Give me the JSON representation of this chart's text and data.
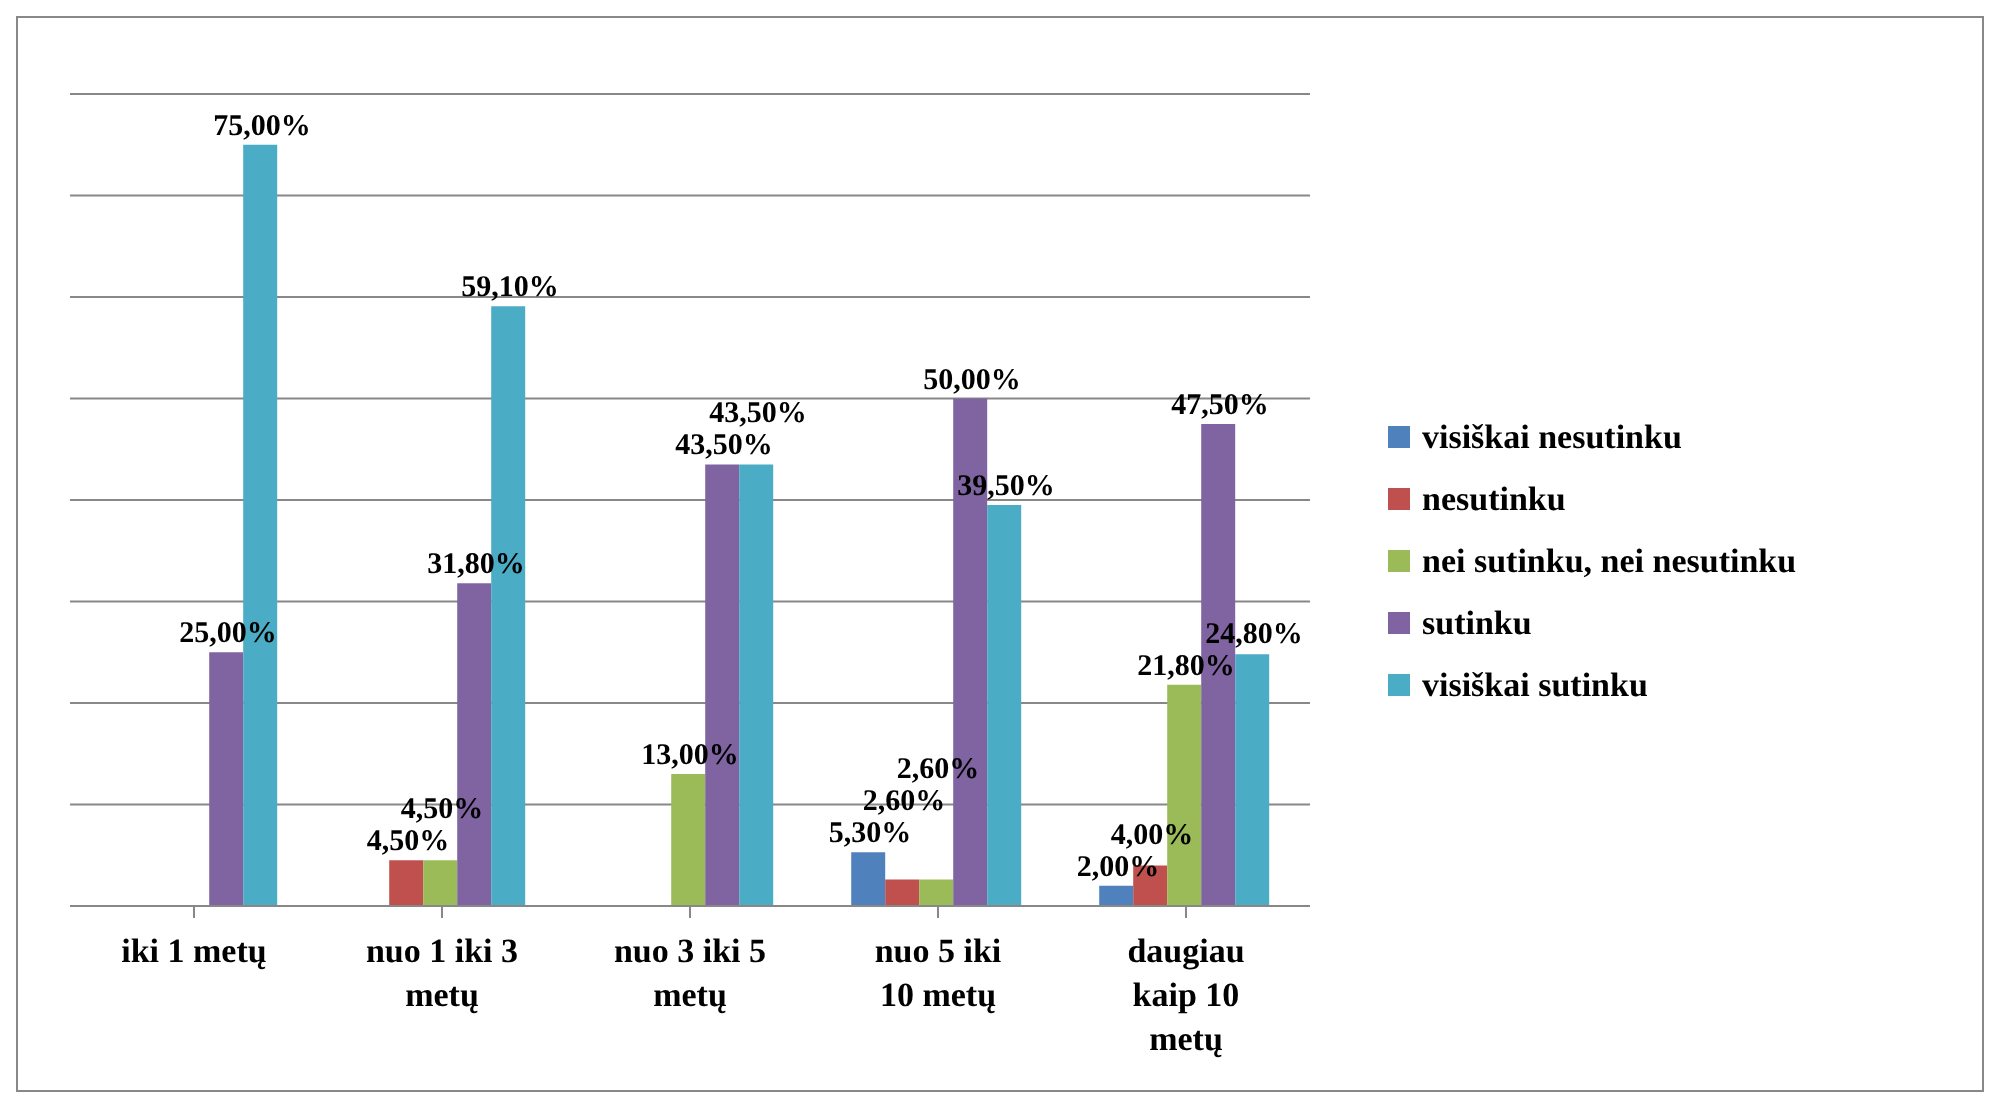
{
  "chart_data": {
    "type": "bar",
    "categories": [
      "iki 1 metų",
      "nuo 1 iki 3 metų",
      "nuo 3 iki 5 metų",
      "nuo 5 iki 10 metų",
      "daugiau kaip 10 metų"
    ],
    "series": [
      {
        "name": "visiškai nesutinku",
        "color": "#4f81bd",
        "values": [
          null,
          null,
          null,
          5.3,
          2.0
        ],
        "value_labels": [
          null,
          null,
          null,
          "5,30%",
          "2,00%"
        ]
      },
      {
        "name": "nesutinku",
        "color": "#c0504d",
        "values": [
          null,
          4.5,
          null,
          2.6,
          4.0
        ],
        "value_labels": [
          null,
          "4,50%",
          null,
          "2,60%",
          "4,00%"
        ]
      },
      {
        "name": "nei sutinku, nei nesutinku",
        "color": "#9bbb59",
        "values": [
          null,
          4.5,
          13.0,
          2.6,
          21.8
        ],
        "value_labels": [
          null,
          "4,50%",
          "13,00%",
          "2,60%",
          "21,80%"
        ]
      },
      {
        "name": "sutinku",
        "color": "#8064a2",
        "values": [
          25.0,
          31.8,
          43.5,
          50.0,
          47.5
        ],
        "value_labels": [
          "25,00%",
          "31,80%",
          "43,50%",
          "50,00%",
          "47,50%"
        ]
      },
      {
        "name": "visiškai sutinku",
        "color": "#4bacc6",
        "values": [
          75.0,
          59.1,
          43.5,
          39.5,
          24.8
        ],
        "value_labels": [
          "75,00%",
          "59,10%",
          "43,50%",
          "39,50%",
          "24,80%"
        ]
      }
    ],
    "ylim": [
      0,
      80
    ],
    "yticks": [
      {
        "value": 0,
        "label": null
      },
      {
        "value": 10,
        "label": null
      },
      {
        "value": 20,
        "label": null
      },
      {
        "value": 30,
        "label": null
      },
      {
        "value": 40,
        "label": null
      },
      {
        "value": 50,
        "label": null
      },
      {
        "value": 60,
        "label": null
      },
      {
        "value": 70,
        "label": null
      },
      {
        "value": 80,
        "label": null
      }
    ],
    "grid": "y",
    "legend": "right",
    "tick_labels": "x"
  }
}
